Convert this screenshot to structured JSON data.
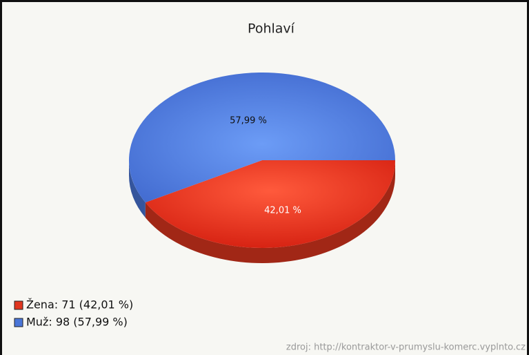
{
  "chart_data": {
    "type": "pie",
    "title": "Pohlaví",
    "categories": [
      "Žena",
      "Muž"
    ],
    "values": [
      42.01,
      57.99
    ],
    "value_labels": [
      "42,01 %",
      "57,99 %"
    ],
    "colors": [
      "#e0361f",
      "#4a76d8"
    ],
    "legend": [
      "Žena: 71 (42,01 %)",
      "Muž: 98 (57,99 %)"
    ],
    "source": "zdroj: http://kontraktor-v-prumyslu-komerc.vyplnto.cz"
  }
}
